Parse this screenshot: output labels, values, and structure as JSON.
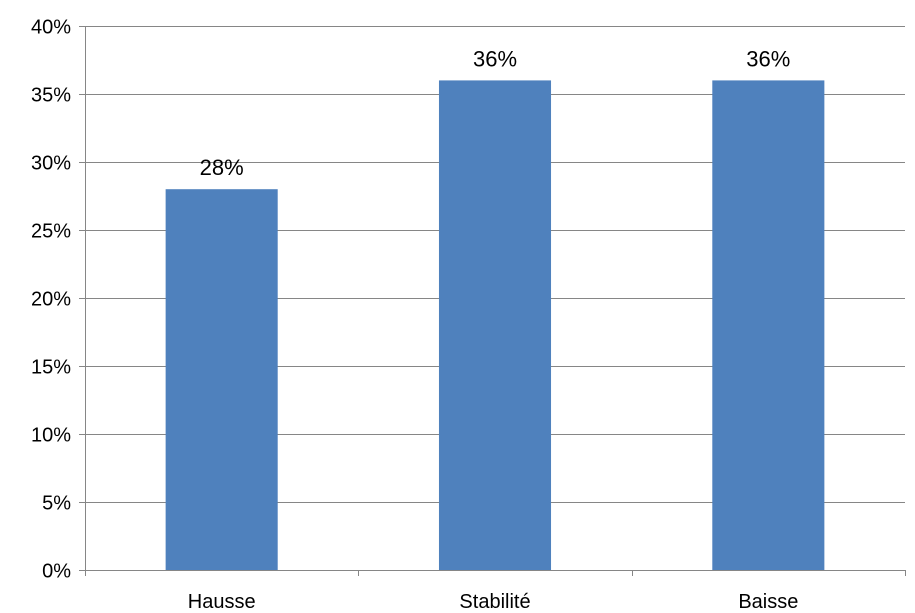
{
  "chart_data": {
    "type": "bar",
    "categories": [
      "Hausse",
      "Stabilité",
      "Baisse"
    ],
    "values": [
      28,
      36,
      36
    ],
    "data_labels": [
      "28%",
      "36%",
      "36%"
    ],
    "ylim": [
      0,
      40
    ],
    "y_ticks": [
      0,
      5,
      10,
      15,
      20,
      25,
      30,
      35,
      40
    ],
    "y_tick_labels": [
      "0%",
      "5%",
      "10%",
      "15%",
      "20%",
      "25%",
      "30%",
      "35%",
      "40%"
    ],
    "grid": true,
    "legend": "none",
    "bar_color": "#4f81bd",
    "grid_color": "#868686",
    "axis_color": "#868686"
  }
}
